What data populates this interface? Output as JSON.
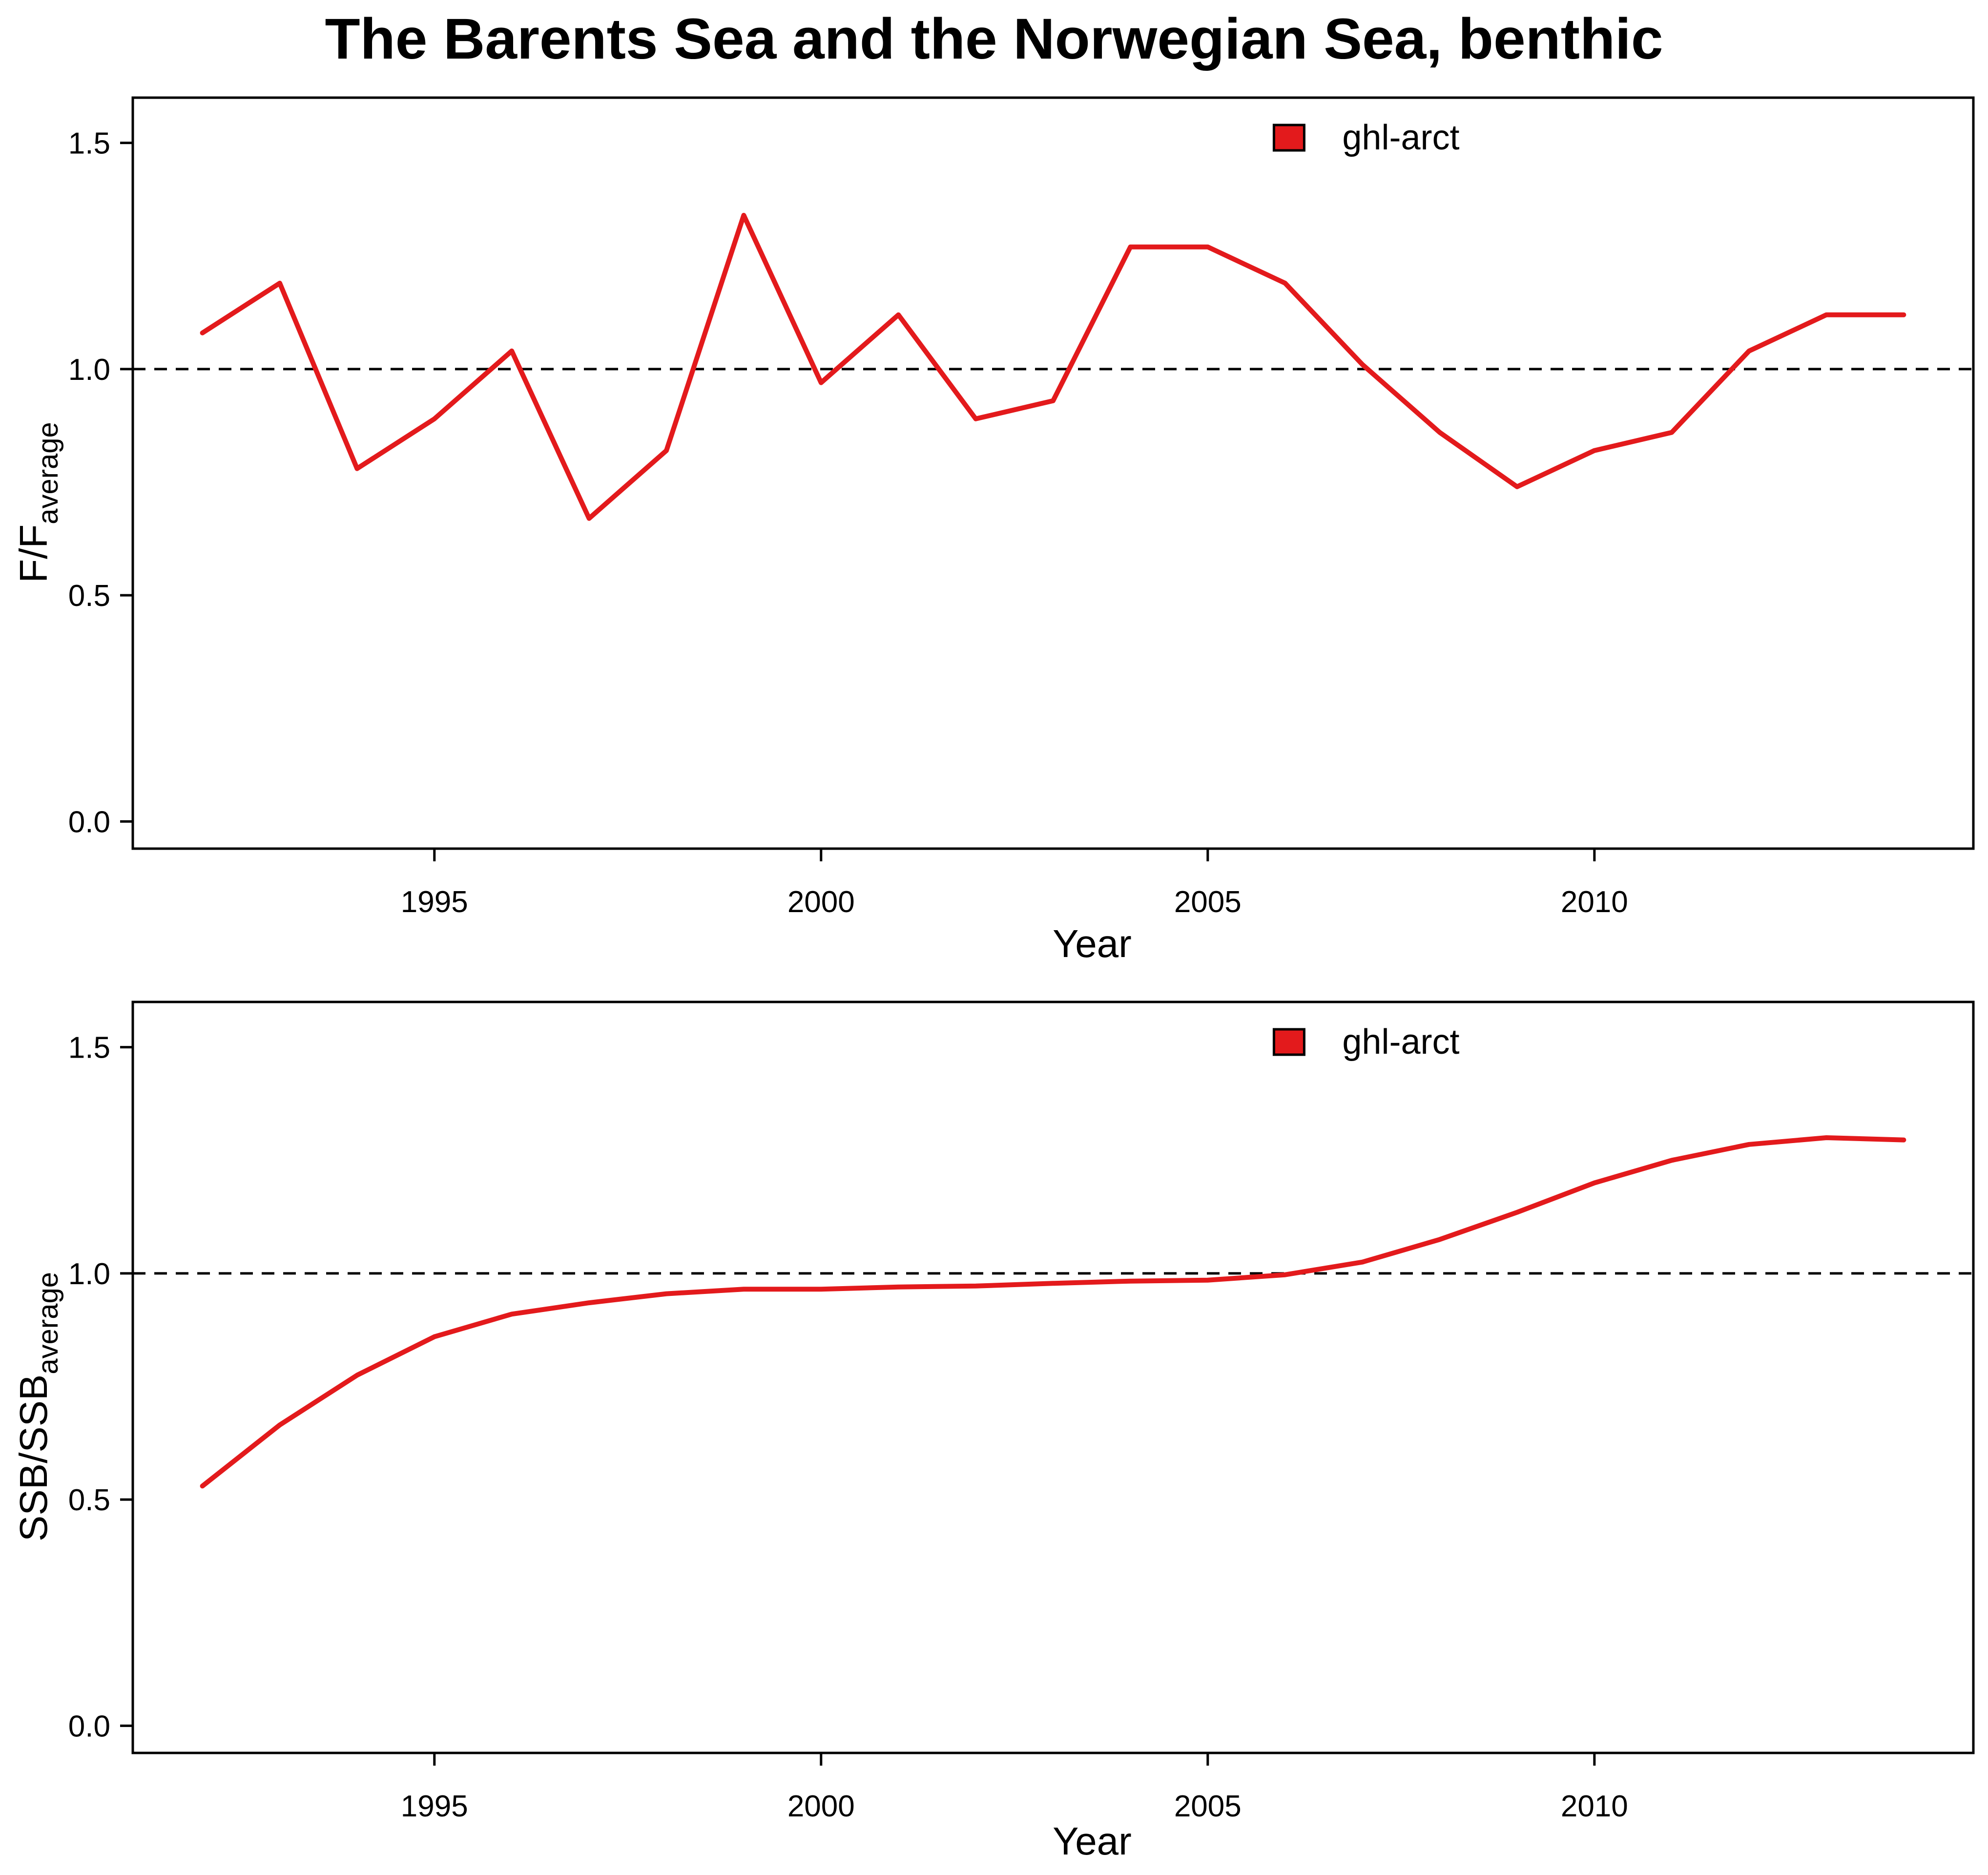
{
  "title": "The Barents Sea and the Norwegian Sea, benthic",
  "colors": {
    "series": "#e31a1c",
    "axis": "#000000"
  },
  "chart_data": [
    {
      "type": "line",
      "xlabel": "Year",
      "ylabel_main": "F/F",
      "ylabel_sub": "average",
      "xlim": [
        1991.1,
        2014.9
      ],
      "ylim": [
        -0.06,
        1.6
      ],
      "x_ticks": [
        1995,
        2000,
        2005,
        2010
      ],
      "x_tick_labels": [
        "1995",
        "2000",
        "2005",
        "2010"
      ],
      "y_ticks": [
        0,
        0.5,
        1,
        1.5
      ],
      "y_tick_labels": [
        "0.0",
        "0.5",
        "1.0",
        "1.5"
      ],
      "reference_line": 1.0,
      "legend": {
        "position": "top-right",
        "label": "ghl-arct"
      },
      "series": [
        {
          "name": "ghl-arct",
          "x": [
            1992,
            1993,
            1994,
            1995,
            1996,
            1997,
            1998,
            1999,
            2000,
            2001,
            2002,
            2003,
            2004,
            2005,
            2006,
            2007,
            2008,
            2009,
            2010,
            2011,
            2012,
            2013,
            2014
          ],
          "values": [
            1.08,
            1.19,
            0.78,
            0.89,
            1.04,
            0.67,
            0.82,
            1.34,
            0.97,
            1.12,
            0.89,
            0.93,
            1.27,
            1.27,
            1.19,
            1.01,
            0.86,
            0.74,
            0.82,
            0.86,
            1.04,
            1.12,
            1.12
          ]
        }
      ]
    },
    {
      "type": "line",
      "xlabel": "Year",
      "ylabel_main": "SSB/SSB",
      "ylabel_sub": "average",
      "xlim": [
        1991.1,
        2014.9
      ],
      "ylim": [
        -0.06,
        1.6
      ],
      "x_ticks": [
        1995,
        2000,
        2005,
        2010
      ],
      "x_tick_labels": [
        "1995",
        "2000",
        "2005",
        "2010"
      ],
      "y_ticks": [
        0,
        0.5,
        1,
        1.5
      ],
      "y_tick_labels": [
        "0.0",
        "0.5",
        "1.0",
        "1.5"
      ],
      "reference_line": 1.0,
      "legend": {
        "position": "top-right",
        "label": "ghl-arct"
      },
      "series": [
        {
          "name": "ghl-arct",
          "x": [
            1992,
            1993,
            1994,
            1995,
            1996,
            1997,
            1998,
            1999,
            2000,
            2001,
            2002,
            2003,
            2004,
            2005,
            2006,
            2007,
            2008,
            2009,
            2010,
            2011,
            2012,
            2013,
            2014
          ],
          "values": [
            0.53,
            0.665,
            0.775,
            0.86,
            0.91,
            0.935,
            0.955,
            0.965,
            0.965,
            0.97,
            0.972,
            0.978,
            0.983,
            0.985,
            0.997,
            1.025,
            1.075,
            1.135,
            1.2,
            1.25,
            1.285,
            1.3,
            1.295
          ]
        }
      ]
    }
  ]
}
